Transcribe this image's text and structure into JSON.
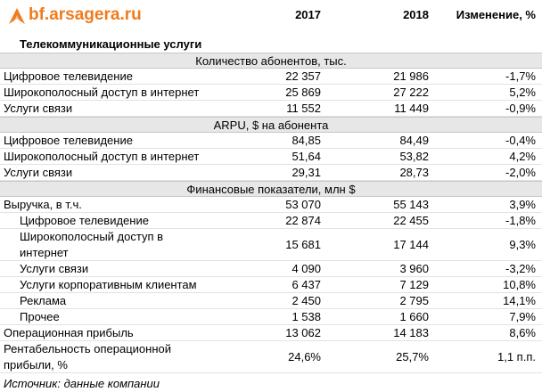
{
  "header": {
    "logo": "bf.arsagera.ru",
    "columns": [
      "2017",
      "2018",
      "Изменение, %"
    ],
    "title": "Телекоммуникационные услуги"
  },
  "table": {
    "sections": [
      {
        "heading": "Количество абонентов, тыс.",
        "rows": [
          [
            "Цифровое телевидение",
            "22 357",
            "21 986",
            "-1,7%"
          ],
          [
            "Широкополосный доступ в интернет",
            "25 869",
            "27 222",
            "5,2%"
          ],
          [
            "Услуги связи",
            "11 552",
            "11 449",
            "-0,9%"
          ]
        ]
      },
      {
        "heading": "ARPU, $ на абонента",
        "rows": [
          [
            "Цифровое телевидение",
            "84,85",
            "84,49",
            "-0,4%"
          ],
          [
            "Широкополосный доступ в интернет",
            "51,64",
            "53,82",
            "4,2%"
          ],
          [
            "Услуги связи",
            "29,31",
            "28,73",
            "-2,0%"
          ]
        ]
      },
      {
        "heading": "Финансовые показатели, млн $",
        "rows": [
          [
            "Выручка, в т.ч.",
            "53 070",
            "55 143",
            "3,9%"
          ],
          [
            "Цифровое телевидение",
            "22 874",
            "22 455",
            "-1,8%"
          ],
          [
            "Широкополосный доступ в интернет",
            "15 681",
            "17 144",
            "9,3%"
          ],
          [
            "Услуги связи",
            "4 090",
            "3 960",
            "-3,2%"
          ],
          [
            "Услуги корпоративным клиентам",
            "6 437",
            "7 129",
            "10,8%"
          ],
          [
            "Реклама",
            "2 450",
            "2 795",
            "14,1%"
          ],
          [
            "Прочее",
            "1 538",
            "1 660",
            "7,9%"
          ],
          [
            "Операционная прибыль",
            "13 062",
            "14 183",
            "8,6%"
          ],
          [
            "Рентабельность операционной прибыли, %",
            "24,6%",
            "25,7%",
            "1,1 п.п."
          ]
        ]
      }
    ]
  },
  "footer": {
    "source": "Источник: данные компании"
  }
}
